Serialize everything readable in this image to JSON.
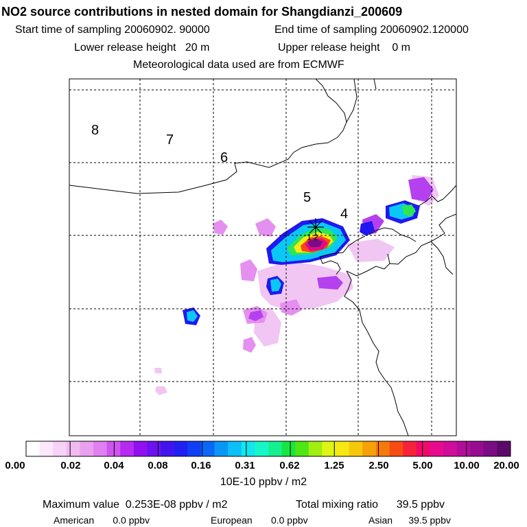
{
  "header": {
    "title": "NO2 source contributions in nested domain for Shangdianzi_200609",
    "start_label": "Start time of sampling 20060902. 90000",
    "end_label": "End time of sampling 20060902.120000",
    "lower_release": "Lower release height   20 m",
    "upper_release": "Upper release height    0 m",
    "met_data": "Meteorological data used are from ECMWF"
  },
  "map": {
    "timezone_labels": [
      "8",
      "7",
      "6",
      "5",
      "4"
    ],
    "marker_label": "1 2"
  },
  "colorbar": {
    "tick_labels": [
      "0.00",
      "0.02",
      "0.04",
      "0.08",
      "0.16",
      "0.31",
      "0.62",
      "1.25",
      "2.50",
      "5.00",
      "10.00",
      "20.00"
    ],
    "unit": "10E-10 ppbv / m2",
    "colors": [
      "#ffffff",
      "#fbe8fb",
      "#f6d2f6",
      "#f0baf0",
      "#e9a0ee",
      "#e07ff0",
      "#cf55f0",
      "#b52bf0",
      "#9010f0",
      "#6a12ef",
      "#4414ee",
      "#2020f2",
      "#1040f5",
      "#0a68f7",
      "#0a96f7",
      "#0ac0f7",
      "#12e6ee",
      "#18f6c8",
      "#14f090",
      "#18e640",
      "#50e614",
      "#a0ee12",
      "#e0f414",
      "#f6e812",
      "#f6c80c",
      "#f6a00a",
      "#f67a0a",
      "#f64c14",
      "#f6223a",
      "#f00a68",
      "#e80a8c",
      "#d00c9a",
      "#b40c9a",
      "#980c92",
      "#7a0c84",
      "#5c0a6a"
    ]
  },
  "footer": {
    "max_value": "Maximum value  0.253E-08 ppbv / m2",
    "total_mixing": "Total mixing ratio      39.5 ppbv",
    "american": "American       0.0 ppbv",
    "european": "European       0.0 ppbv",
    "asian": "Asian      39.5 ppbv"
  },
  "chart_data": {
    "type": "heatmap",
    "title": "NO2 source contributions in nested domain for Shangdianzi_200609",
    "colorbar_levels": [
      0.0,
      0.02,
      0.04,
      0.08,
      0.16,
      0.31,
      0.62,
      1.25,
      2.5,
      5.0,
      10.0,
      20.0
    ],
    "colorbar_unit": "10E-10 ppbv / m2",
    "maximum_value": "0.253E-08 ppbv / m2",
    "total_mixing_ratio_ppbv": 39.5,
    "contributions_ppbv": {
      "American": 0.0,
      "European": 0.0,
      "Asian": 39.5
    },
    "grid": true
  }
}
